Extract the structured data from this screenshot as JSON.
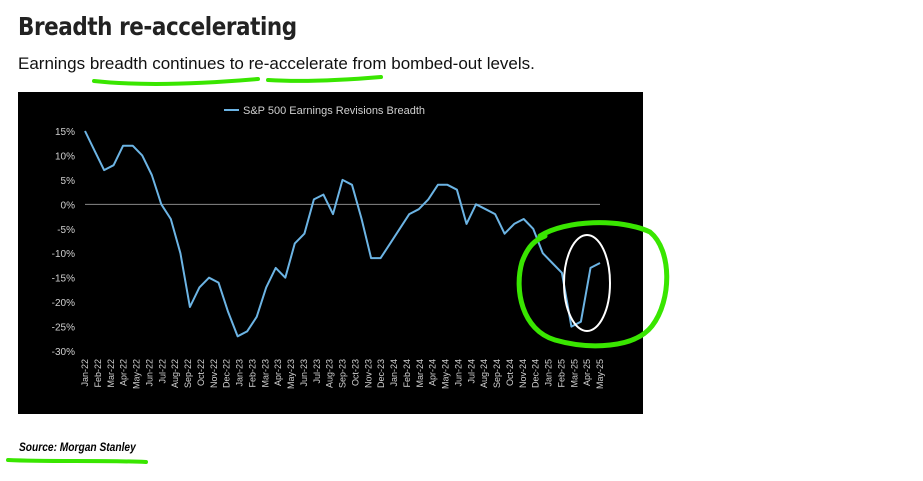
{
  "header": {
    "title": "Breadth re-accelerating",
    "subtitle": "Earnings breadth continues to re-accelerate from bombed-out levels."
  },
  "footer": {
    "source": "Source: Morgan Stanley"
  },
  "colors": {
    "chart_background": "#000000",
    "series_line": "#6cb4e4",
    "annotation_green": "#39e600",
    "annotation_white": "#ffffff"
  },
  "chart_data": {
    "type": "line",
    "legend": "top-center",
    "grid": false,
    "ylim": [
      -30,
      15
    ],
    "y_ticks": [
      "15%",
      "10%",
      "5%",
      "0%",
      "-5%",
      "-10%",
      "-15%",
      "-20%",
      "-25%",
      "-30%"
    ],
    "x_ticks": [
      "Jan-22",
      "Feb-22",
      "Mar-22",
      "Apr-22",
      "May-22",
      "Jun-22",
      "Jul-22",
      "Aug-22",
      "Sep-22",
      "Oct-22",
      "Nov-22",
      "Dec-22",
      "Jan-23",
      "Feb-23",
      "Mar-23",
      "Apr-23",
      "May-23",
      "Jun-23",
      "Jul-23",
      "Aug-23",
      "Sep-23",
      "Oct-23",
      "Nov-23",
      "Dec-23",
      "Jan-24",
      "Feb-24",
      "Mar-24",
      "Apr-24",
      "May-24",
      "Jun-24",
      "Jul-24",
      "Aug-24",
      "Sep-24",
      "Oct-24",
      "Nov-24",
      "Dec-24",
      "Jan-25",
      "Feb-25",
      "Mar-25",
      "Apr-25",
      "May-25"
    ],
    "series": [
      {
        "name": "S&P 500 Earnings Revisions Breadth",
        "values": [
          15,
          11,
          7,
          8,
          12,
          12,
          10,
          6,
          0,
          -3,
          -10,
          -21,
          -17,
          -15,
          -16,
          -22,
          -27,
          -26,
          -23,
          -17,
          -13,
          -15,
          -8,
          -6,
          1,
          2,
          -2,
          5,
          4,
          -3,
          -11,
          -11,
          -8,
          -5,
          -2,
          -1,
          1,
          4,
          4,
          3,
          -4,
          0,
          -1,
          -2,
          -6,
          -4,
          -3,
          -5,
          -10,
          -12,
          -14,
          -25,
          -24,
          -13,
          -12
        ]
      }
    ]
  }
}
